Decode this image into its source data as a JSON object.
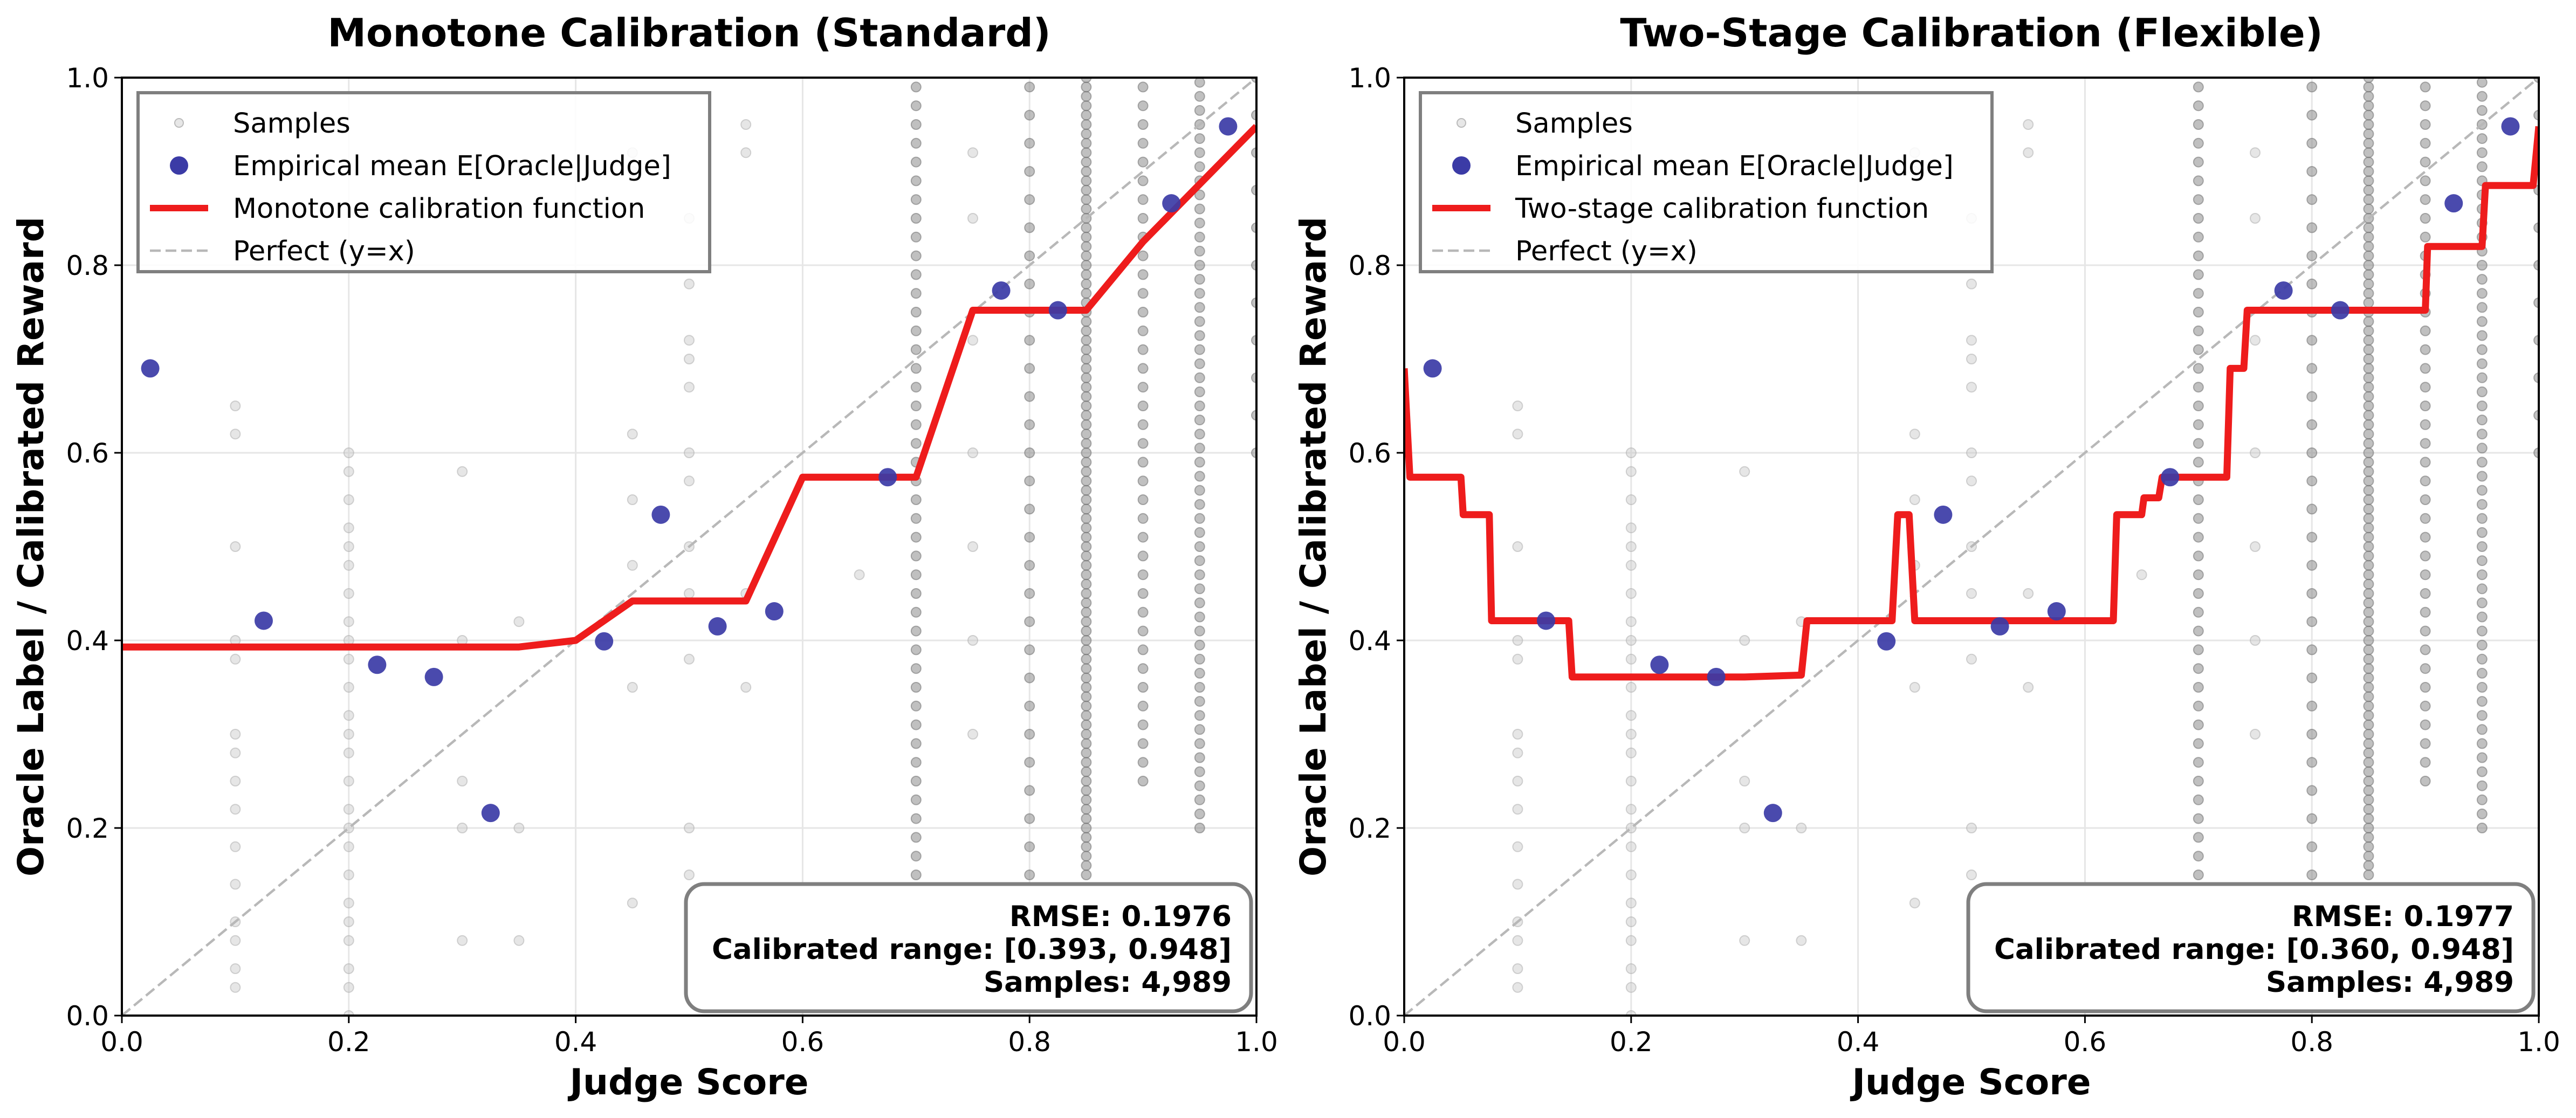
{
  "chart_data": [
    {
      "type": "line",
      "title": "Monotone Calibration (Standard)",
      "xlabel": "Judge Score",
      "ylabel": "Oracle Label / Calibrated Reward",
      "xlim": [
        0,
        1
      ],
      "ylim": [
        0,
        1
      ],
      "x_ticks": [
        "0.0",
        "0.2",
        "0.4",
        "0.6",
        "0.8",
        "1.0"
      ],
      "y_ticks": [
        "0.0",
        "0.2",
        "0.4",
        "0.6",
        "0.8",
        "1.0"
      ],
      "grid": true,
      "legend_position": "top-left",
      "legend": [
        {
          "label": "Samples",
          "kind": "samples"
        },
        {
          "label": "Empirical mean E[Oracle|Judge]",
          "kind": "mean"
        },
        {
          "label": "Monotone calibration function",
          "kind": "calibration"
        },
        {
          "label": "Perfect (y=x)",
          "kind": "perfect"
        }
      ],
      "series": [
        {
          "name": "Empirical mean E[Oracle|Judge]",
          "x": [
            0.025,
            0.125,
            0.225,
            0.275,
            0.325,
            0.425,
            0.475,
            0.525,
            0.575,
            0.675,
            0.775,
            0.825,
            0.925,
            0.975
          ],
          "y": [
            0.69,
            0.421,
            0.374,
            0.361,
            0.216,
            0.399,
            0.534,
            0.415,
            0.431,
            0.574,
            0.773,
            0.752,
            0.866,
            0.948
          ]
        },
        {
          "name": "Monotone calibration function",
          "x": [
            0.0,
            0.35,
            0.4,
            0.45,
            0.55,
            0.6,
            0.7,
            0.75,
            0.85,
            0.9,
            1.0
          ],
          "y": [
            0.393,
            0.393,
            0.4,
            0.442,
            0.442,
            0.574,
            0.574,
            0.752,
            0.752,
            0.825,
            0.948
          ]
        },
        {
          "name": "Perfect (y=x)",
          "x": [
            0,
            1
          ],
          "y": [
            0,
            1
          ]
        }
      ],
      "samples": {
        "columns": [
          {
            "x": 0.1,
            "y": [
              0.03,
              0.05,
              0.08,
              0.1,
              0.14,
              0.18,
              0.22,
              0.25,
              0.28,
              0.3,
              0.38,
              0.4,
              0.5,
              0.62,
              0.65
            ]
          },
          {
            "x": 0.2,
            "y": [
              0.0,
              0.03,
              0.05,
              0.08,
              0.1,
              0.12,
              0.15,
              0.18,
              0.2,
              0.22,
              0.25,
              0.28,
              0.3,
              0.32,
              0.35,
              0.38,
              0.4,
              0.42,
              0.45,
              0.48,
              0.5,
              0.52,
              0.55,
              0.58,
              0.6
            ]
          },
          {
            "x": 0.3,
            "y": [
              0.08,
              0.2,
              0.25,
              0.4,
              0.58
            ]
          },
          {
            "x": 0.35,
            "y": [
              0.08,
              0.2,
              0.42
            ]
          },
          {
            "x": 0.45,
            "y": [
              0.12,
              0.35,
              0.48,
              0.55,
              0.62,
              0.9,
              0.92
            ]
          },
          {
            "x": 0.5,
            "y": [
              0.15,
              0.2,
              0.38,
              0.45,
              0.5,
              0.57,
              0.6,
              0.67,
              0.7,
              0.72,
              0.78,
              0.85
            ]
          },
          {
            "x": 0.55,
            "y": [
              0.1,
              0.35,
              0.45,
              0.92,
              0.95
            ]
          },
          {
            "x": 0.65,
            "y": [
              0.47
            ]
          },
          {
            "x": 0.7,
            "dense": true,
            "from": 0.15,
            "to": 1.0,
            "step": 0.02
          },
          {
            "x": 0.75,
            "y": [
              0.3,
              0.4,
              0.5,
              0.6,
              0.72,
              0.85,
              0.92
            ]
          },
          {
            "x": 0.8,
            "dense": true,
            "from": 0.15,
            "to": 1.0,
            "step": 0.03
          },
          {
            "x": 0.85,
            "dense": true,
            "from": 0.15,
            "to": 1.0,
            "step": 0.01
          },
          {
            "x": 0.9,
            "dense": true,
            "from": 0.25,
            "to": 1.0,
            "step": 0.02
          },
          {
            "x": 0.95,
            "dense": true,
            "from": 0.2,
            "to": 1.0,
            "step": 0.015
          },
          {
            "x": 1.0,
            "dense": true,
            "from": 0.6,
            "to": 1.0,
            "step": 0.04
          }
        ]
      },
      "stats": [
        "RMSE: 0.1976",
        "Calibrated range: [0.393, 0.948]",
        "Samples: 4,989"
      ]
    },
    {
      "type": "line",
      "title": "Two-Stage Calibration (Flexible)",
      "xlabel": "Judge Score",
      "ylabel": "Oracle Label / Calibrated Reward",
      "xlim": [
        0,
        1
      ],
      "ylim": [
        0,
        1
      ],
      "x_ticks": [
        "0.0",
        "0.2",
        "0.4",
        "0.6",
        "0.8",
        "1.0"
      ],
      "y_ticks": [
        "0.0",
        "0.2",
        "0.4",
        "0.6",
        "0.8",
        "1.0"
      ],
      "grid": true,
      "legend_position": "top-left",
      "legend": [
        {
          "label": "Samples",
          "kind": "samples"
        },
        {
          "label": "Empirical mean E[Oracle|Judge]",
          "kind": "mean"
        },
        {
          "label": "Two-stage calibration function",
          "kind": "calibration"
        },
        {
          "label": "Perfect (y=x)",
          "kind": "perfect"
        }
      ],
      "series": [
        {
          "name": "Empirical mean E[Oracle|Judge]",
          "x": [
            0.025,
            0.125,
            0.225,
            0.275,
            0.325,
            0.425,
            0.475,
            0.525,
            0.575,
            0.675,
            0.775,
            0.825,
            0.925,
            0.975
          ],
          "y": [
            0.69,
            0.421,
            0.374,
            0.361,
            0.216,
            0.399,
            0.534,
            0.415,
            0.431,
            0.574,
            0.773,
            0.752,
            0.866,
            0.948
          ]
        },
        {
          "name": "Two-stage calibration function",
          "x": [
            0.0,
            0.005,
            0.05,
            0.052,
            0.075,
            0.077,
            0.145,
            0.148,
            0.2,
            0.3,
            0.35,
            0.355,
            0.43,
            0.435,
            0.445,
            0.45,
            0.625,
            0.628,
            0.65,
            0.652,
            0.665,
            0.668,
            0.725,
            0.728,
            0.74,
            0.743,
            0.75,
            0.753,
            0.9,
            0.902,
            0.95,
            0.953,
            0.995,
            1.0
          ],
          "y": [
            0.69,
            0.574,
            0.574,
            0.534,
            0.534,
            0.421,
            0.421,
            0.361,
            0.361,
            0.361,
            0.363,
            0.421,
            0.421,
            0.534,
            0.534,
            0.421,
            0.421,
            0.534,
            0.534,
            0.552,
            0.552,
            0.574,
            0.574,
            0.69,
            0.69,
            0.752,
            0.752,
            0.752,
            0.752,
            0.82,
            0.82,
            0.885,
            0.885,
            0.948
          ]
        },
        {
          "name": "Perfect (y=x)",
          "x": [
            0,
            1
          ],
          "y": [
            0,
            1
          ]
        }
      ],
      "samples": {
        "columns": [
          {
            "x": 0.1,
            "y": [
              0.03,
              0.05,
              0.08,
              0.1,
              0.14,
              0.18,
              0.22,
              0.25,
              0.28,
              0.3,
              0.38,
              0.4,
              0.5,
              0.62,
              0.65
            ]
          },
          {
            "x": 0.2,
            "y": [
              0.0,
              0.03,
              0.05,
              0.08,
              0.1,
              0.12,
              0.15,
              0.18,
              0.2,
              0.22,
              0.25,
              0.28,
              0.3,
              0.32,
              0.35,
              0.38,
              0.4,
              0.42,
              0.45,
              0.48,
              0.5,
              0.52,
              0.55,
              0.58,
              0.6
            ]
          },
          {
            "x": 0.3,
            "y": [
              0.08,
              0.2,
              0.25,
              0.4,
              0.58
            ]
          },
          {
            "x": 0.35,
            "y": [
              0.08,
              0.2,
              0.42
            ]
          },
          {
            "x": 0.45,
            "y": [
              0.12,
              0.35,
              0.48,
              0.55,
              0.62,
              0.9,
              0.92
            ]
          },
          {
            "x": 0.5,
            "y": [
              0.15,
              0.2,
              0.38,
              0.45,
              0.5,
              0.57,
              0.6,
              0.67,
              0.7,
              0.72,
              0.78,
              0.85
            ]
          },
          {
            "x": 0.55,
            "y": [
              0.1,
              0.35,
              0.45,
              0.92,
              0.95
            ]
          },
          {
            "x": 0.65,
            "y": [
              0.47
            ]
          },
          {
            "x": 0.7,
            "dense": true,
            "from": 0.15,
            "to": 1.0,
            "step": 0.02
          },
          {
            "x": 0.75,
            "y": [
              0.3,
              0.4,
              0.5,
              0.6,
              0.72,
              0.85,
              0.92
            ]
          },
          {
            "x": 0.8,
            "dense": true,
            "from": 0.15,
            "to": 1.0,
            "step": 0.03
          },
          {
            "x": 0.85,
            "dense": true,
            "from": 0.15,
            "to": 1.0,
            "step": 0.01
          },
          {
            "x": 0.9,
            "dense": true,
            "from": 0.25,
            "to": 1.0,
            "step": 0.02
          },
          {
            "x": 0.95,
            "dense": true,
            "from": 0.2,
            "to": 1.0,
            "step": 0.015
          },
          {
            "x": 1.0,
            "dense": true,
            "from": 0.6,
            "to": 1.0,
            "step": 0.04
          }
        ]
      },
      "stats": [
        "RMSE: 0.1977",
        "Calibrated range: [0.360, 0.948]",
        "Samples: 4,989"
      ]
    }
  ],
  "colors": {
    "calibration": "#ee1c1c",
    "mean": "#3b3ba6",
    "samples": "#808080",
    "perfect": "#b8b8b8",
    "grid": "#e6e6e6",
    "frame": "#7f7f7f"
  }
}
